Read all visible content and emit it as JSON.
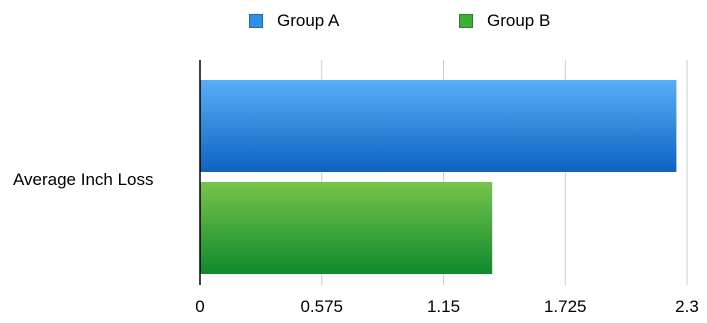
{
  "chart_data": {
    "type": "bar",
    "orientation": "horizontal",
    "categories": [
      "Average Inch Loss"
    ],
    "series": [
      {
        "name": "Group A",
        "values": [
          2.25
        ],
        "color": "#2f8fe6"
      },
      {
        "name": "Group B",
        "values": [
          1.38
        ],
        "color": "#3fae36"
      }
    ],
    "x_ticks": [
      "0",
      "0.575",
      "1.15",
      "1.725",
      "2.3"
    ],
    "xlim": [
      0,
      2.3
    ],
    "grid": "vertical",
    "legend_position": "top"
  }
}
